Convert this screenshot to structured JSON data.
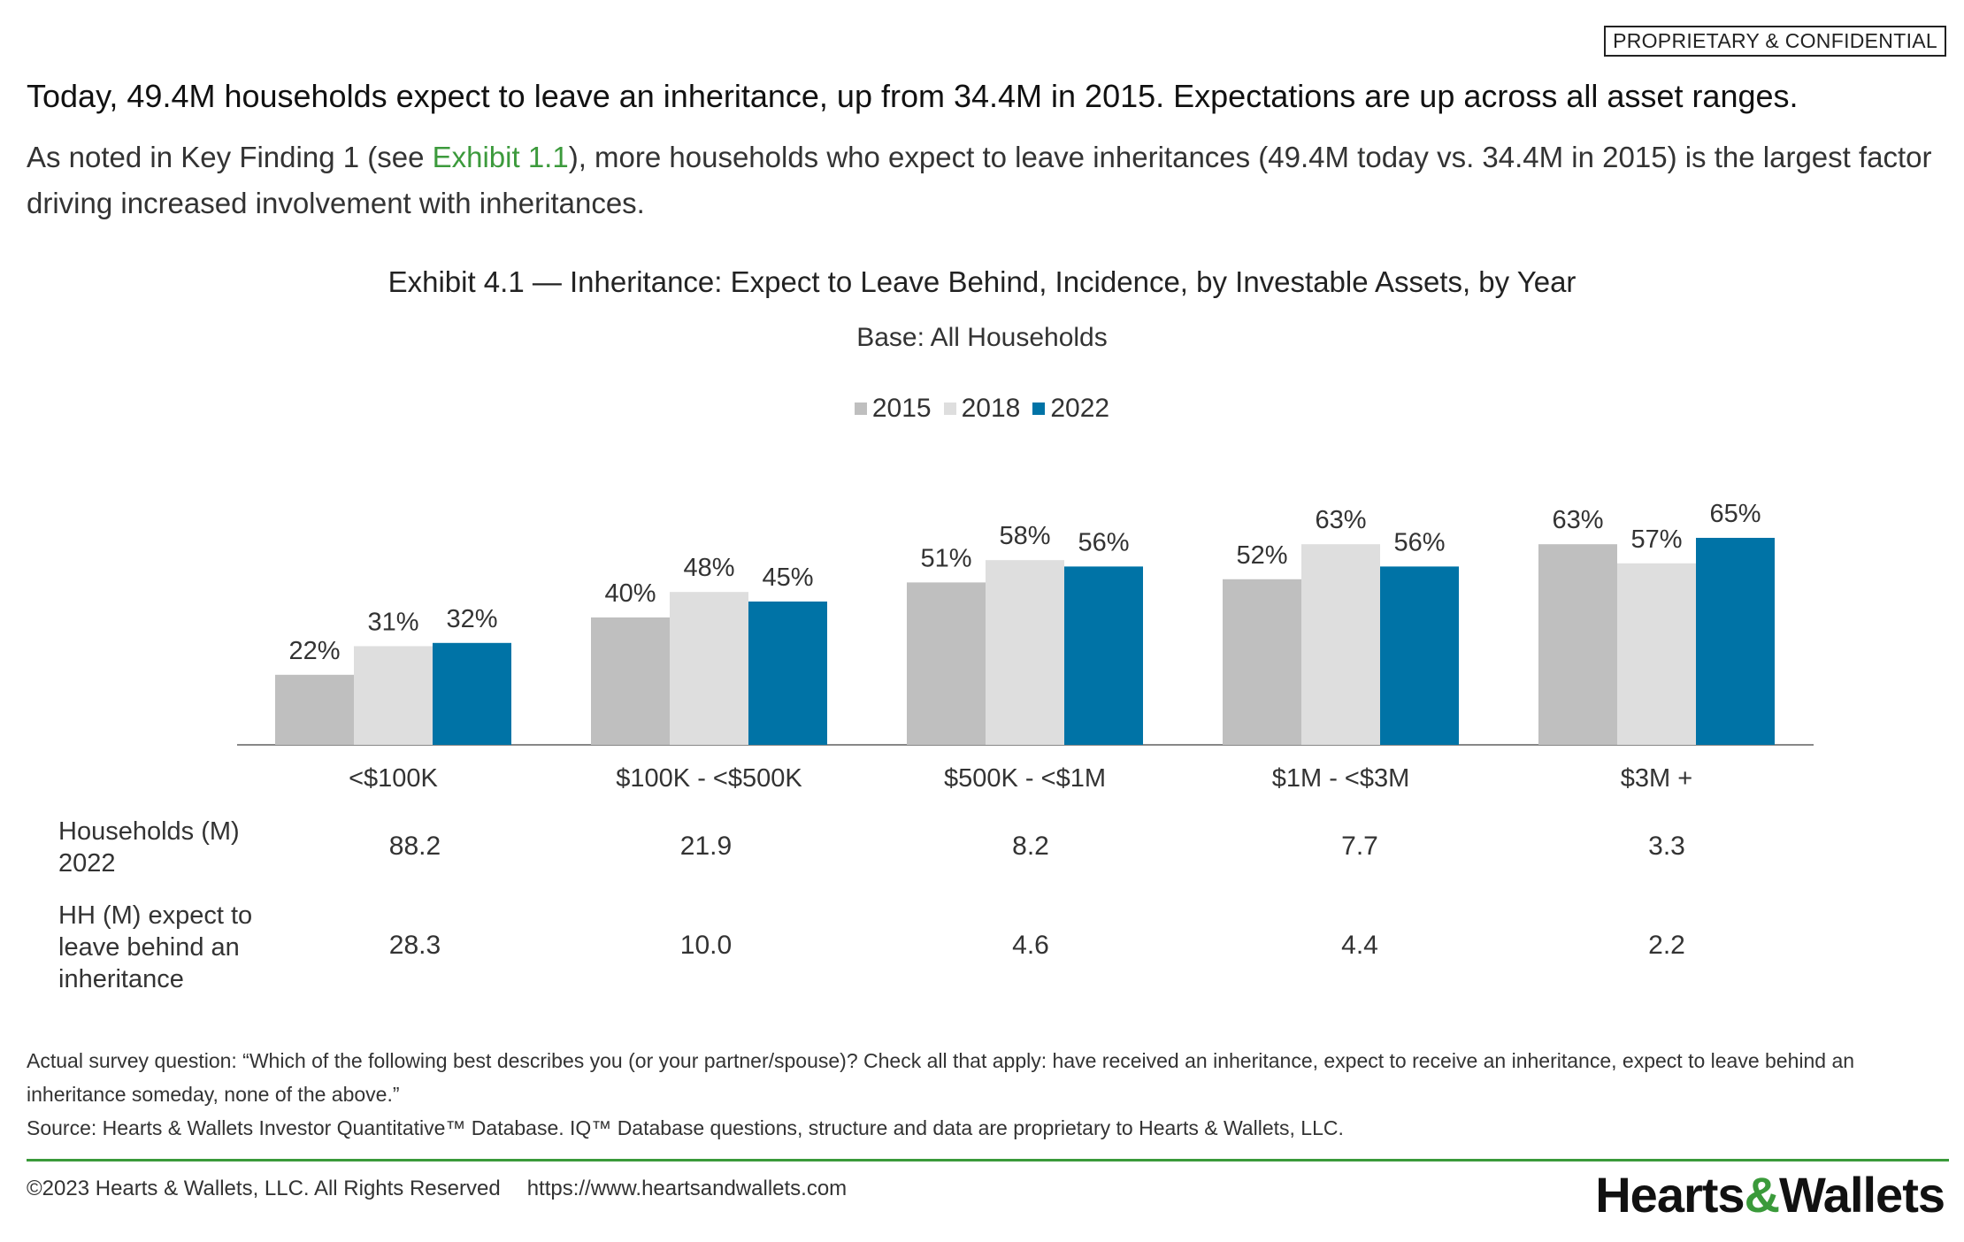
{
  "badge": "PROPRIETARY & CONFIDENTIAL",
  "headline": "Today, 49.4M households expect to leave an inheritance, up from 34.4M in 2015. Expectations are up across all asset ranges.",
  "intro": {
    "before": "As noted in Key Finding 1 (see ",
    "link": "Exhibit 1.1",
    "after": "), more households who expect to leave inheritances (49.4M today vs. 34.4M in 2015) is the largest factor driving increased involvement with inheritances."
  },
  "chart_data": {
    "type": "bar",
    "title": "Exhibit 4.1 — Inheritance: Expect to Leave Behind, Incidence, by Investable Assets, by Year",
    "subtitle": "Base: All Households",
    "categories": [
      "<$100K",
      "$100K - <$500K",
      "$500K - <$1M",
      "$1M - <$3M",
      "$3M +"
    ],
    "series": [
      {
        "name": "2015",
        "color": "#bfbfbf",
        "values": [
          22,
          40,
          51,
          52,
          63
        ]
      },
      {
        "name": "2018",
        "color": "#dedede",
        "values": [
          31,
          48,
          58,
          63,
          57
        ]
      },
      {
        "name": "2022",
        "color": "#0073a6",
        "values": [
          32,
          45,
          56,
          56,
          65
        ]
      }
    ],
    "value_suffix": "%",
    "legend_position": "top-center",
    "grid": false
  },
  "table": {
    "rows": [
      {
        "label": "Households (M) 2022",
        "values": [
          "88.2",
          "21.9",
          "8.2",
          "7.7",
          "3.3"
        ]
      },
      {
        "label": "HH (M) expect to leave behind an inheritance",
        "values": [
          "28.3",
          "10.0",
          "4.6",
          "4.4",
          "2.2"
        ]
      }
    ]
  },
  "notes": {
    "question": "Actual survey question: “Which of the following best describes you (or your partner/spouse)? Check all that apply: have received an inheritance, expect to receive an inheritance, expect to leave behind an inheritance someday, none of the above.”",
    "source": "Source: Hearts & Wallets Investor Quantitative™ Database. IQ™ Database questions, structure and data are proprietary to Hearts & Wallets, LLC."
  },
  "footer": {
    "copyright": "©2023 Hearts & Wallets, LLC. All Rights Reserved",
    "url": "https://www.heartsandwallets.com"
  },
  "logo": {
    "part1": "Hearts",
    "amp": "&",
    "part2": "Wallets"
  }
}
